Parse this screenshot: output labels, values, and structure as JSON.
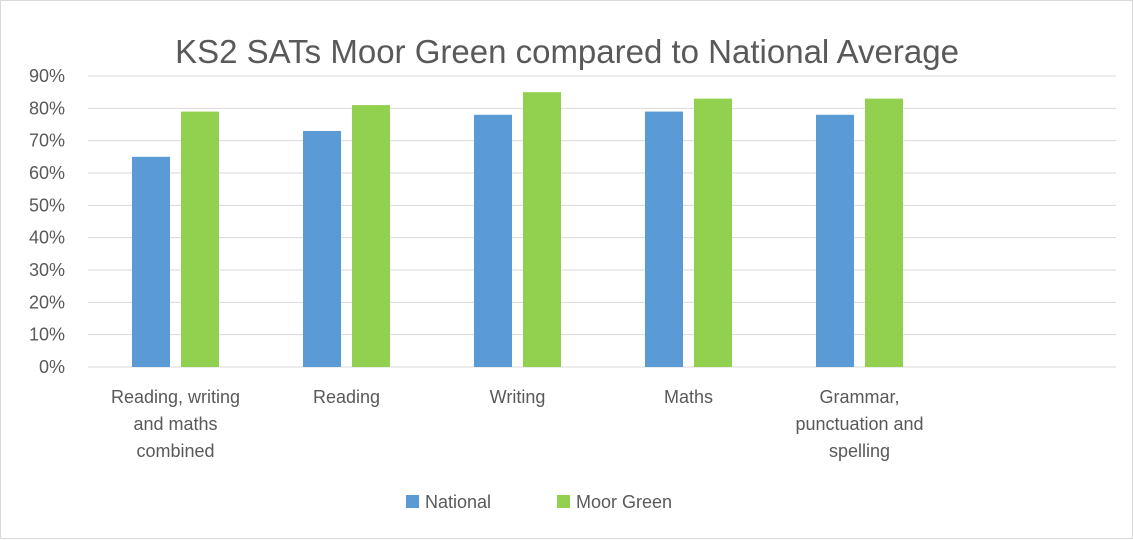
{
  "chart_data": {
    "type": "bar",
    "title": "KS2 SATs Moor Green compared to National Average",
    "categories": [
      [
        "Reading, writing",
        "and maths",
        "combined"
      ],
      [
        "Reading"
      ],
      [
        "Writing"
      ],
      [
        "Maths"
      ],
      [
        "Grammar,",
        "punctuation and",
        "spelling"
      ]
    ],
    "series": [
      {
        "name": "National",
        "values": [
          65,
          73,
          78,
          79,
          78
        ],
        "color": "#5b9bd5"
      },
      {
        "name": "Moor Green",
        "values": [
          79,
          81,
          85,
          83,
          83
        ],
        "color": "#92d050"
      }
    ],
    "y_ticks": [
      "0%",
      "10%",
      "20%",
      "30%",
      "40%",
      "50%",
      "60%",
      "70%",
      "80%",
      "90%"
    ],
    "ylim": [
      0,
      90
    ],
    "grid": true,
    "legend_position": "bottom",
    "gridline_color": "#d9d9d9",
    "text_color": "#595959"
  }
}
